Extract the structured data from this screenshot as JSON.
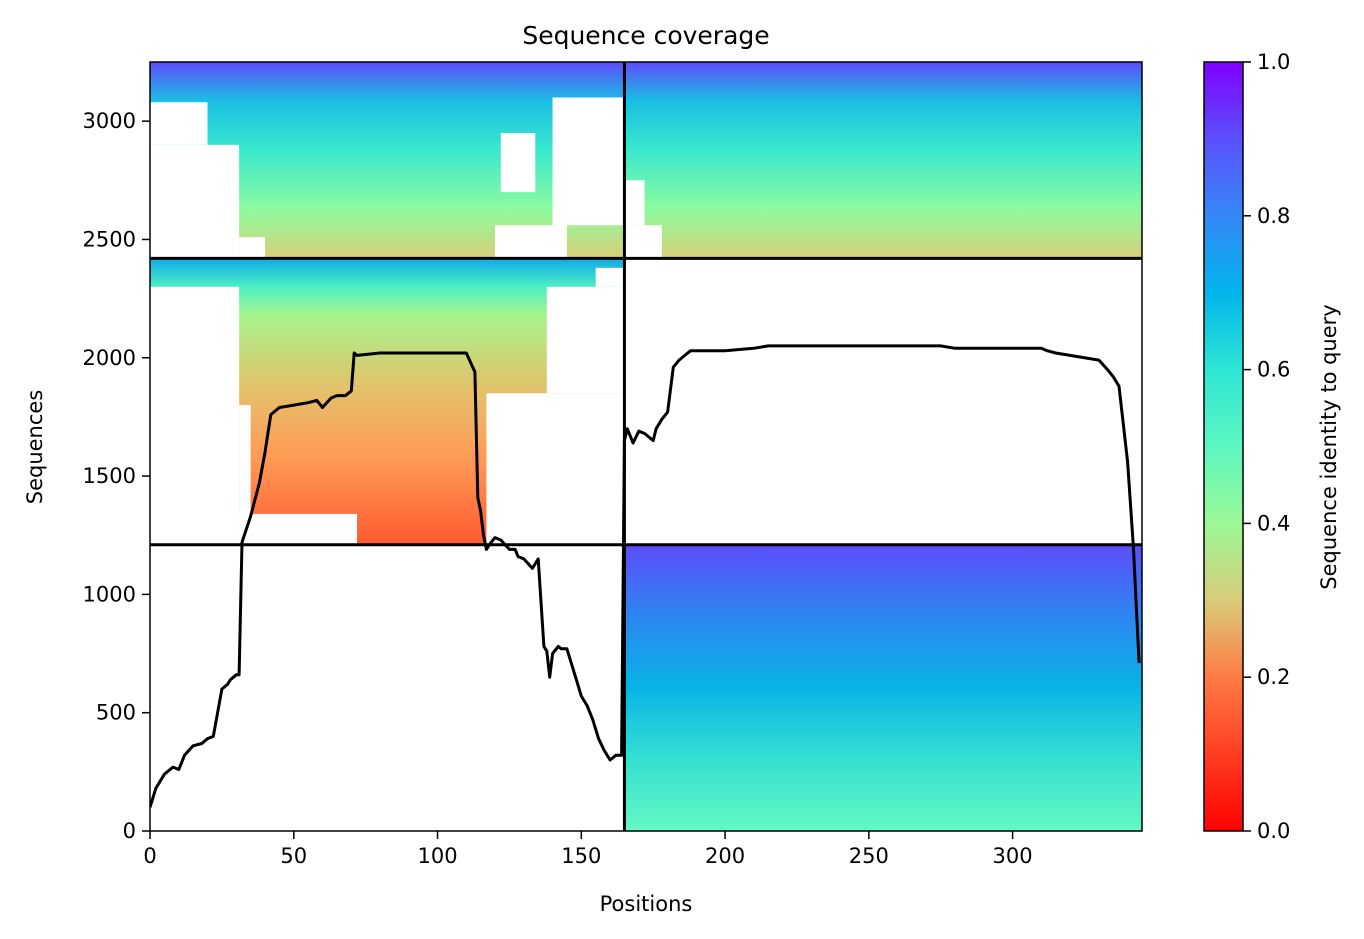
{
  "chart_data": {
    "type": "heatmap",
    "title": "Sequence coverage",
    "xlabel": "Positions",
    "ylabel": "Sequences",
    "xlim": [
      0,
      345
    ],
    "ylim": [
      0,
      3250
    ],
    "xticks": [
      0,
      50,
      100,
      150,
      200,
      250,
      300
    ],
    "yticks": [
      0,
      500,
      1000,
      1500,
      2000,
      2500,
      3000
    ],
    "grid": false,
    "colorbar": {
      "label": "Sequence identity to query",
      "colormap": "rainbow_r",
      "range": [
        0.0,
        1.0
      ],
      "ticks": [
        0.0,
        0.2,
        0.4,
        0.6,
        0.8,
        1.0
      ],
      "tick_labels": [
        "0.0",
        "0.2",
        "0.4",
        "0.6",
        "0.8",
        "1.0"
      ]
    },
    "chain_boundaries": {
      "x": [
        165
      ],
      "y": [
        1210,
        2420
      ]
    },
    "blocks": [
      {
        "name": "upper",
        "y_range": [
          2420,
          3250
        ],
        "x_range": [
          0,
          345
        ],
        "identity_top": 0.9,
        "identity_bottom": 0.33
      },
      {
        "name": "middle",
        "y_range": [
          1210,
          2420
        ],
        "x_range": [
          0,
          165
        ],
        "identity_top": 0.75,
        "identity_bottom": 0.15
      },
      {
        "name": "lower",
        "y_range": [
          0,
          1210
        ],
        "x_range": [
          165,
          345
        ],
        "identity_top": 0.92,
        "identity_bottom": 0.55
      }
    ],
    "coverage_line": {
      "color": "#000000",
      "x": [
        0,
        2,
        5,
        8,
        10,
        12,
        15,
        18,
        20,
        22,
        25,
        27,
        28,
        30,
        31,
        32,
        35,
        38,
        40,
        42,
        45,
        50,
        55,
        58,
        60,
        63,
        65,
        68,
        70,
        71,
        72,
        80,
        90,
        100,
        110,
        113,
        114,
        115,
        116,
        117,
        118,
        120,
        122,
        125,
        127,
        128,
        130,
        133,
        135,
        137,
        138,
        139,
        140,
        142,
        143,
        145,
        148,
        150,
        152,
        154,
        156,
        158,
        160,
        162,
        164,
        165,
        166,
        168,
        170,
        172,
        174,
        175,
        176,
        178,
        180,
        182,
        184,
        186,
        188,
        190,
        200,
        210,
        215,
        220,
        250,
        270,
        275,
        280,
        300,
        310,
        312,
        315,
        320,
        330,
        333,
        335,
        337,
        340,
        342,
        344
      ],
      "y": [
        100,
        180,
        240,
        270,
        260,
        320,
        360,
        370,
        390,
        400,
        600,
        620,
        640,
        660,
        660,
        1220,
        1330,
        1470,
        1600,
        1760,
        1790,
        1800,
        1810,
        1820,
        1790,
        1830,
        1840,
        1840,
        1860,
        2020,
        2010,
        2020,
        2020,
        2020,
        2020,
        1940,
        1410,
        1350,
        1250,
        1190,
        1210,
        1240,
        1230,
        1190,
        1190,
        1160,
        1150,
        1110,
        1150,
        780,
        760,
        650,
        750,
        780,
        770,
        770,
        650,
        570,
        530,
        470,
        390,
        340,
        300,
        320,
        320,
        1650,
        1700,
        1640,
        1690,
        1680,
        1660,
        1650,
        1700,
        1740,
        1770,
        1960,
        1990,
        2010,
        2030,
        2030,
        2030,
        2040,
        2050,
        2050,
        2050,
        2050,
        2050,
        2040,
        2040,
        2040,
        2030,
        2020,
        2010,
        1990,
        1950,
        1920,
        1880,
        1560,
        1200,
        710
      ]
    }
  }
}
